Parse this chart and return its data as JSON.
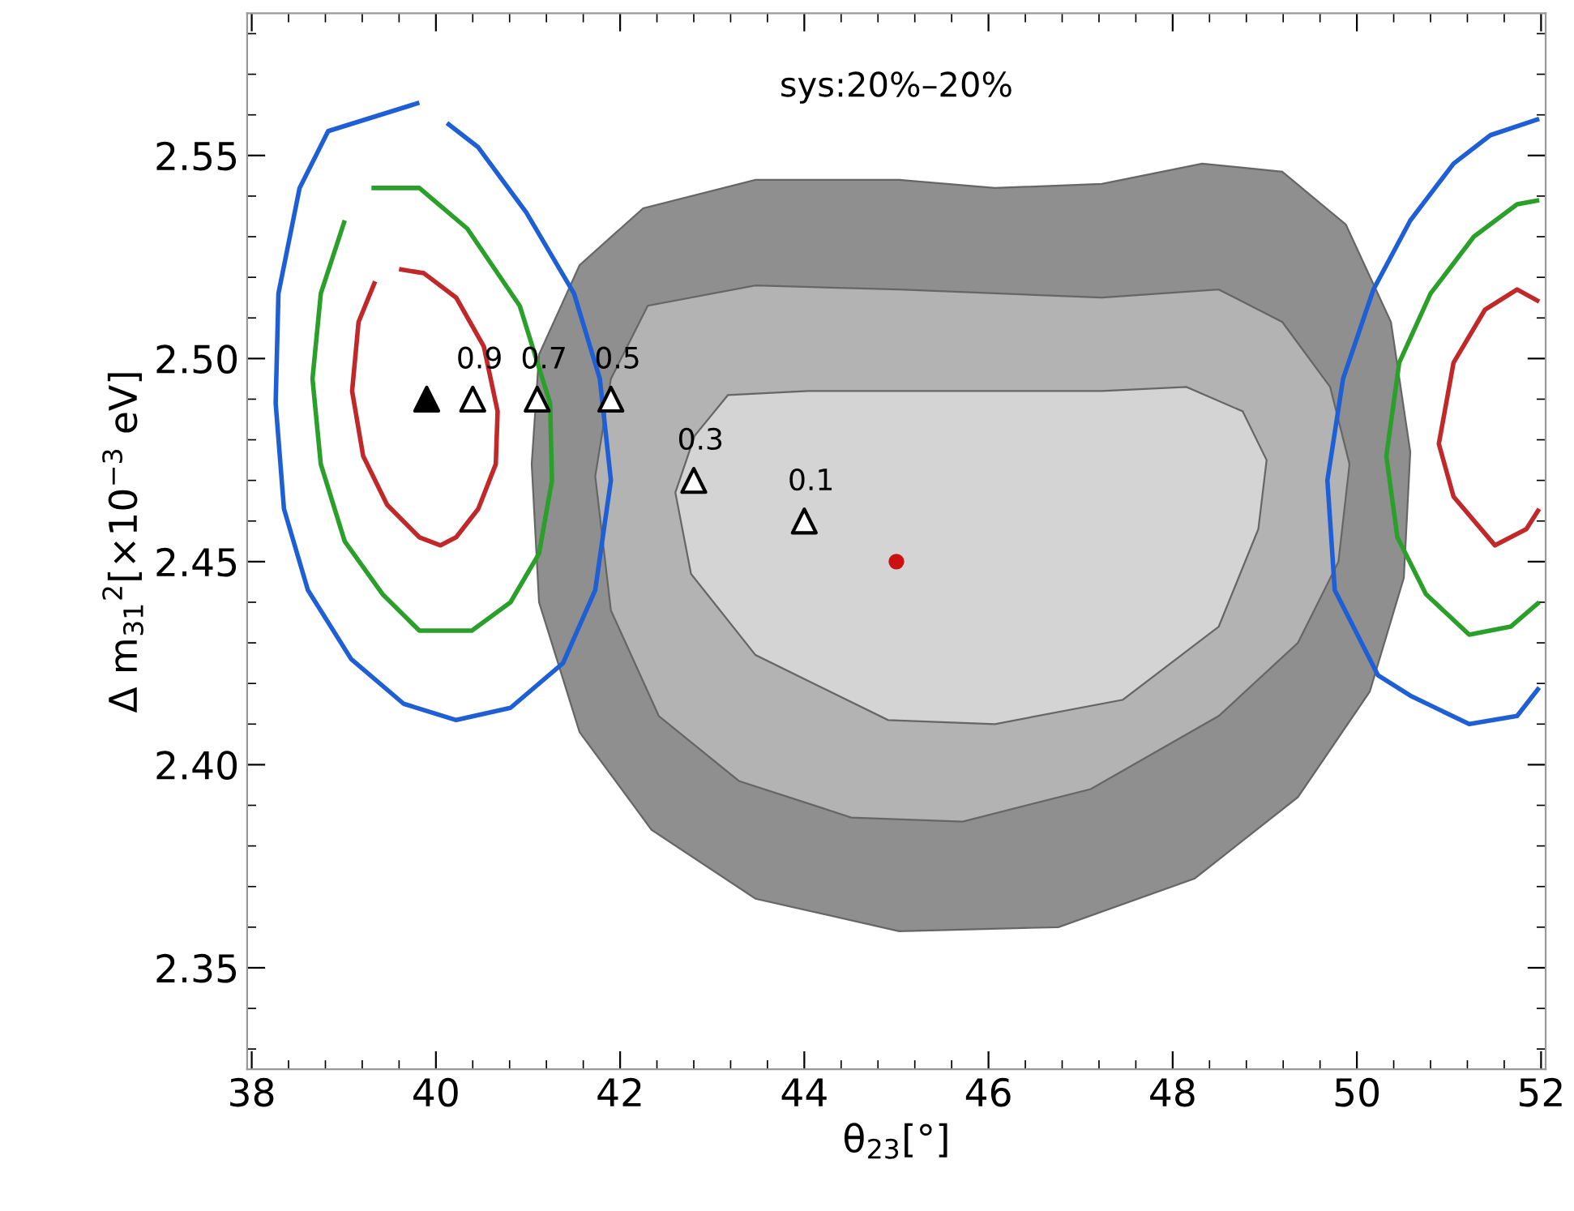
{
  "chart_data": {
    "type": "line",
    "title": "sys:20%–20%",
    "xlabel": "θ$_{23}$[°]",
    "ylabel": "Δ m$_{31}$$^{2}$[×10$^{−3}$ eV]",
    "xlim": [
      37.95,
      52.05
    ],
    "ylim": [
      2.325,
      2.585
    ],
    "xticks": [
      38,
      40,
      42,
      44,
      46,
      48,
      50,
      52
    ],
    "yticks": [
      2.35,
      {
        "value": 2.4,
        "label": "2.40"
      },
      2.45,
      {
        "value": 2.5,
        "label": "2.50"
      },
      2.55
    ],
    "grid": false,
    "legend": false,
    "series": [
      {
        "type": "area",
        "color": "#8f8f8f",
        "x": [
          41.04,
          41.12,
          41.56,
          42.25,
          43.47,
          45.03,
          46.07,
          47.23,
          48.32,
          49.19,
          49.88,
          50.37,
          50.58,
          50.51,
          50.14,
          49.36,
          48.24,
          46.76,
          45.03,
          43.47,
          42.34,
          41.56,
          41.12
        ],
        "values": [
          2.474,
          2.501,
          2.523,
          2.537,
          2.544,
          2.544,
          2.542,
          2.543,
          2.548,
          2.546,
          2.533,
          2.509,
          2.477,
          2.446,
          2.418,
          2.392,
          2.372,
          2.36,
          2.359,
          2.367,
          2.384,
          2.408,
          2.44
        ]
      },
      {
        "type": "area",
        "color": "#b3b3b3",
        "x": [
          41.73,
          41.9,
          42.3,
          43.47,
          45.03,
          47.23,
          48.5,
          49.19,
          49.71,
          49.92,
          49.8,
          49.36,
          48.5,
          47.11,
          45.72,
          44.51,
          43.29,
          42.42,
          41.9
        ],
        "values": [
          2.471,
          2.495,
          2.513,
          2.518,
          2.517,
          2.515,
          2.517,
          2.509,
          2.493,
          2.474,
          2.45,
          2.43,
          2.412,
          2.394,
          2.386,
          2.387,
          2.396,
          2.412,
          2.438
        ]
      },
      {
        "type": "area",
        "color": "#d4d4d4",
        "x": [
          42.6,
          42.81,
          43.17,
          44.04,
          45.72,
          47.23,
          48.15,
          48.76,
          49.02,
          48.93,
          48.5,
          47.46,
          46.07,
          44.91,
          43.47,
          42.77
        ],
        "values": [
          2.467,
          2.481,
          2.491,
          2.492,
          2.492,
          2.492,
          2.493,
          2.487,
          2.475,
          2.458,
          2.434,
          2.416,
          2.41,
          2.411,
          2.427,
          2.447
        ]
      },
      {
        "color": "#1f5fd6",
        "x": [
          39.82,
          38.83,
          38.52,
          38.29,
          38.26,
          38.35,
          38.61,
          39.08,
          39.65,
          40.22,
          40.81,
          41.38,
          41.73,
          41.9,
          41.78,
          41.5,
          40.98,
          40.46,
          40.12,
          39.82
        ],
        "values": [
          2.563,
          2.556,
          2.542,
          2.516,
          2.489,
          2.463,
          2.443,
          2.426,
          2.415,
          2.411,
          2.414,
          2.425,
          2.443,
          2.47,
          2.495,
          2.516,
          2.536,
          2.552,
          2.558,
          2.563
        ]
      },
      {
        "color": "#2aa02a",
        "x": [
          39.3,
          39.82,
          40.34,
          40.91,
          41.24,
          41.26,
          41.12,
          40.81,
          40.39,
          39.82,
          39.42,
          39.01,
          38.75,
          38.66,
          38.75,
          39.01,
          39.3
        ],
        "values": [
          2.542,
          2.542,
          2.532,
          2.513,
          2.489,
          2.47,
          2.452,
          2.44,
          2.433,
          2.433,
          2.442,
          2.455,
          2.474,
          2.495,
          2.516,
          2.534,
          2.542
        ]
      },
      {
        "color": "#c0282a",
        "x": [
          39.6,
          39.87,
          40.22,
          40.52,
          40.67,
          40.65,
          40.46,
          40.22,
          40.05,
          39.82,
          39.47,
          39.21,
          39.09,
          39.16,
          39.34,
          39.6
        ],
        "values": [
          2.522,
          2.521,
          2.515,
          2.503,
          2.487,
          2.474,
          2.463,
          2.456,
          2.454,
          2.456,
          2.464,
          2.476,
          2.492,
          2.509,
          2.519,
          2.522
        ]
      },
      {
        "color": "#1f5fd6",
        "x": [
          51.98,
          51.45,
          51.05,
          50.58,
          50.18,
          49.85,
          49.68,
          49.76,
          50.23,
          50.58,
          51.22,
          51.74,
          51.98
        ],
        "values": [
          2.559,
          2.555,
          2.548,
          2.534,
          2.517,
          2.495,
          2.47,
          2.443,
          2.422,
          2.417,
          2.41,
          2.412,
          2.419
        ]
      },
      {
        "color": "#2aa02a",
        "x": [
          51.98,
          51.74,
          51.27,
          50.8,
          50.46,
          50.32,
          50.44,
          50.75,
          51.22,
          51.67,
          51.98
        ],
        "values": [
          2.539,
          2.538,
          2.53,
          2.516,
          2.499,
          2.476,
          2.456,
          2.442,
          2.432,
          2.434,
          2.44
        ]
      },
      {
        "color": "#c0282a",
        "x": [
          51.98,
          51.74,
          51.39,
          51.05,
          50.89,
          51.05,
          51.5,
          51.84,
          51.98
        ],
        "values": [
          2.514,
          2.517,
          2.512,
          2.499,
          2.479,
          2.466,
          2.454,
          2.458,
          2.463
        ]
      },
      {
        "type": "scatter",
        "marker": "triangle",
        "color": "#000000",
        "x": [
          39.9
        ],
        "values": [
          2.49
        ]
      },
      {
        "type": "scatter",
        "marker": "triangle",
        "color": "#ffffff",
        "x": [
          40.4,
          41.1,
          41.9,
          42.8,
          44.0
        ],
        "values": [
          2.49,
          2.49,
          2.49,
          2.47,
          2.46
        ]
      },
      {
        "type": "scatter",
        "marker": "circle",
        "color": "#cc1111",
        "x": [
          45.0
        ],
        "values": [
          2.45
        ]
      }
    ],
    "annotations": [
      {
        "text": "0.9",
        "x": 40.4,
        "y": 2.49
      },
      {
        "text": "0.7",
        "x": 41.1,
        "y": 2.49
      },
      {
        "text": "0.5",
        "x": 41.9,
        "y": 2.49
      },
      {
        "text": "0.3",
        "x": 42.8,
        "y": 2.47
      },
      {
        "text": "0.1",
        "x": 44.0,
        "y": 2.46
      }
    ]
  }
}
